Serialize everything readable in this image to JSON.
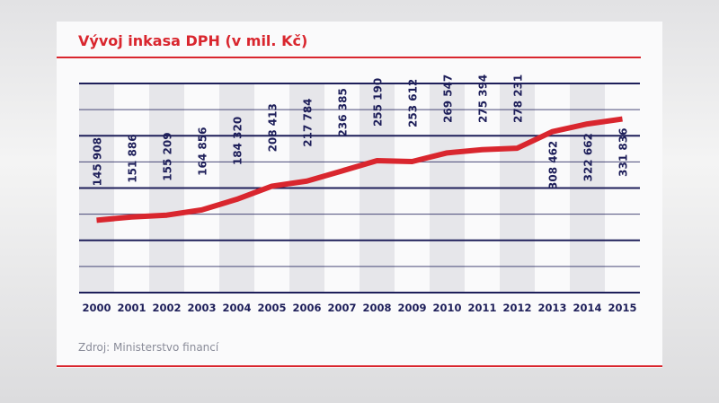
{
  "title": "Vývoj inkasa DPH (v mil. Kč)",
  "source": "Zdroj: Ministerstvo financí",
  "colors": {
    "line": "#d9262e",
    "grid": "#1e1f5a",
    "labels": "#1e1f5a",
    "band": "#e6e6ea",
    "title": "#d9262e"
  },
  "chart_data": {
    "type": "line",
    "title": "Vývoj inkasa DPH (v mil. Kč)",
    "categories": [
      "2000",
      "2001",
      "2002",
      "2003",
      "2004",
      "2005",
      "2006",
      "2007",
      "2008",
      "2009",
      "2010",
      "2011",
      "2012",
      "2013",
      "2014",
      "2015"
    ],
    "values": [
      145908,
      151886,
      155209,
      164856,
      184320,
      208413,
      217784,
      236385,
      255190,
      253612,
      269547,
      275394,
      278231,
      308462,
      322662,
      331836
    ],
    "data_labels": [
      "145 908",
      "151 886",
      "155 209",
      "164 856",
      "184 320",
      "208 413",
      "217 784",
      "236 385",
      "255 190",
      "253 612",
      "269 547",
      "275 394",
      "278 231",
      "308 462",
      "322 662",
      "331 836"
    ],
    "ylim": [
      13000,
      397000
    ],
    "grid": true,
    "legend": "none"
  }
}
